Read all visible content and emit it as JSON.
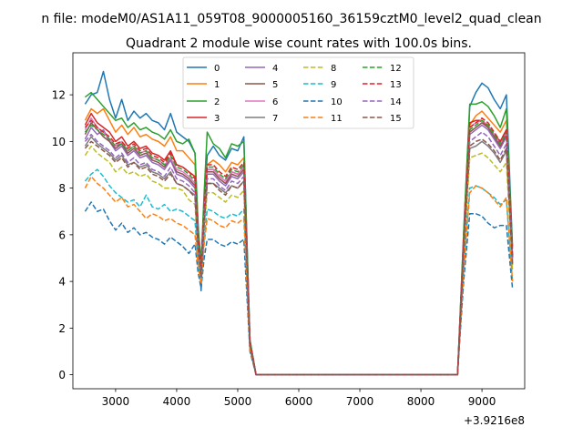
{
  "chart_data": {
    "type": "line",
    "suptitle": "n file: modeM0/AS1A11_059T08_9000005160_36159cztM0_level2_quad_clean",
    "title": "Quadrant 2 module wise count rates with 100.0s bins.",
    "xlabel": "",
    "ylabel": "",
    "x_offset_label": "+3.9216e8",
    "xlim": [
      2300,
      9700
    ],
    "ylim": [
      -0.6,
      13.8
    ],
    "xticks": [
      3000,
      4000,
      5000,
      6000,
      7000,
      8000,
      9000
    ],
    "yticks": [
      0,
      2,
      4,
      6,
      8,
      10,
      12
    ],
    "grid": false,
    "legend": {
      "position": "top-center",
      "columns": 4
    },
    "x": [
      2500,
      2600,
      2700,
      2800,
      2900,
      3000,
      3100,
      3200,
      3300,
      3400,
      3500,
      3600,
      3700,
      3800,
      3900,
      4000,
      4100,
      4200,
      4300,
      4350,
      4400,
      4450,
      4500,
      4600,
      4700,
      4800,
      4900,
      5000,
      5100,
      5200,
      5300,
      5400,
      5500,
      6000,
      7000,
      8000,
      8500,
      8600,
      8700,
      8800,
      8900,
      9000,
      9100,
      9200,
      9300,
      9400,
      9500
    ],
    "series": [
      {
        "name": "0",
        "style": "solid",
        "color": "#1f77b4",
        "values": [
          11.6,
          12.0,
          12.1,
          13.0,
          11.8,
          11.0,
          11.8,
          10.9,
          11.3,
          11.0,
          11.2,
          10.9,
          10.8,
          10.5,
          11.2,
          10.4,
          10.2,
          10.0,
          9.5,
          6.5,
          3.6,
          7.5,
          9.4,
          9.8,
          9.4,
          9.2,
          9.7,
          9.6,
          10.2,
          1.5,
          0,
          0,
          0,
          0,
          0,
          0,
          0,
          0,
          6.0,
          11.5,
          12.1,
          12.5,
          12.3,
          11.8,
          11.4,
          12.0,
          5.5
        ]
      },
      {
        "name": "1",
        "style": "solid",
        "color": "#ff7f0e",
        "values": [
          10.9,
          11.4,
          11.2,
          11.4,
          10.9,
          10.4,
          10.7,
          10.3,
          10.6,
          10.2,
          10.3,
          10.1,
          10.0,
          9.8,
          10.2,
          9.6,
          9.6,
          9.3,
          9.0,
          6.0,
          4.2,
          7.0,
          9.0,
          9.2,
          9.0,
          8.7,
          9.1,
          9.0,
          9.3,
          1.4,
          0,
          0,
          0,
          0,
          0,
          0,
          0,
          0,
          5.6,
          10.7,
          11.1,
          11.3,
          11.0,
          10.7,
          10.4,
          10.9,
          5.0
        ]
      },
      {
        "name": "2",
        "style": "solid",
        "color": "#2ca02c",
        "values": [
          11.9,
          12.1,
          11.8,
          11.5,
          11.2,
          10.9,
          11.0,
          10.6,
          10.8,
          10.5,
          10.6,
          10.4,
          10.3,
          10.1,
          10.5,
          10.0,
          9.9,
          10.1,
          9.5,
          6.4,
          4.8,
          7.8,
          10.4,
          9.9,
          9.7,
          9.3,
          9.9,
          9.8,
          10.0,
          1.5,
          0,
          0,
          0,
          0,
          0,
          0,
          0,
          0,
          6.1,
          11.6,
          11.6,
          11.7,
          11.5,
          11.1,
          10.6,
          11.4,
          5.4
        ]
      },
      {
        "name": "3",
        "style": "solid",
        "color": "#d62728",
        "values": [
          10.7,
          11.2,
          10.8,
          10.6,
          10.4,
          10.0,
          10.2,
          9.8,
          10.0,
          9.7,
          9.8,
          9.5,
          9.4,
          9.2,
          9.6,
          9.0,
          8.9,
          8.7,
          8.5,
          5.9,
          4.4,
          7.0,
          8.8,
          8.8,
          8.5,
          8.3,
          8.7,
          8.6,
          8.9,
          1.4,
          0,
          0,
          0,
          0,
          0,
          0,
          0,
          0,
          5.7,
          10.8,
          10.9,
          10.9,
          10.6,
          10.3,
          10.0,
          10.5,
          5.1
        ]
      },
      {
        "name": "4",
        "style": "solid",
        "color": "#9467bd",
        "values": [
          10.1,
          10.6,
          10.3,
          10.5,
          10.0,
          9.6,
          9.8,
          9.4,
          9.6,
          9.3,
          9.4,
          9.1,
          9.0,
          8.8,
          9.2,
          8.6,
          8.5,
          8.3,
          8.0,
          5.6,
          4.3,
          6.8,
          8.6,
          8.6,
          8.3,
          8.1,
          8.5,
          8.4,
          8.7,
          1.3,
          0,
          0,
          0,
          0,
          0,
          0,
          0,
          0,
          5.4,
          10.3,
          10.5,
          10.7,
          10.5,
          10.1,
          9.7,
          10.2,
          4.9
        ]
      },
      {
        "name": "5",
        "style": "solid",
        "color": "#8c564b",
        "values": [
          10.3,
          10.8,
          10.5,
          10.2,
          10.0,
          9.7,
          9.9,
          9.5,
          9.7,
          9.4,
          9.5,
          9.2,
          9.1,
          8.9,
          9.3,
          8.7,
          8.6,
          8.4,
          8.1,
          5.7,
          4.4,
          6.9,
          8.7,
          8.7,
          8.4,
          8.2,
          8.6,
          8.5,
          8.8,
          1.4,
          0,
          0,
          0,
          0,
          0,
          0,
          0,
          0,
          5.5,
          10.4,
          10.6,
          10.8,
          10.6,
          10.2,
          9.8,
          10.3,
          5.0
        ]
      },
      {
        "name": "6",
        "style": "solid",
        "color": "#e377c2",
        "values": [
          10.5,
          11.0,
          10.6,
          10.4,
          10.1,
          9.8,
          10.0,
          9.6,
          9.8,
          9.5,
          9.6,
          9.3,
          9.2,
          9.0,
          9.3,
          8.8,
          8.7,
          8.5,
          8.2,
          5.8,
          4.5,
          7.0,
          8.8,
          8.8,
          8.5,
          8.3,
          8.7,
          8.6,
          8.9,
          1.4,
          0,
          0,
          0,
          0,
          0,
          0,
          0,
          0,
          5.6,
          10.6,
          10.8,
          10.9,
          10.7,
          10.3,
          9.9,
          10.4,
          5.0
        ]
      },
      {
        "name": "7",
        "style": "solid",
        "color": "#7f7f7f",
        "values": [
          9.8,
          10.2,
          9.9,
          9.7,
          9.5,
          9.2,
          9.4,
          9.0,
          9.1,
          8.9,
          9.0,
          8.7,
          8.6,
          8.4,
          8.7,
          8.2,
          8.1,
          7.9,
          7.7,
          5.4,
          4.2,
          6.5,
          8.2,
          8.2,
          8.0,
          7.8,
          8.1,
          8.0,
          8.3,
          1.3,
          0,
          0,
          0,
          0,
          0,
          0,
          0,
          0,
          5.2,
          9.7,
          9.8,
          10.0,
          9.8,
          9.5,
          9.1,
          9.6,
          4.7
        ]
      },
      {
        "name": "8",
        "style": "dashed",
        "color": "#bcbd22",
        "values": [
          9.4,
          9.8,
          9.5,
          9.3,
          9.1,
          8.7,
          8.9,
          8.6,
          8.7,
          8.5,
          8.6,
          8.3,
          8.2,
          8.0,
          8.0,
          8.0,
          7.9,
          7.5,
          7.3,
          5.2,
          4.0,
          6.2,
          7.8,
          7.8,
          7.6,
          7.4,
          7.7,
          7.6,
          7.9,
          1.2,
          0,
          0,
          0,
          0,
          0,
          0,
          0,
          0,
          5.0,
          9.3,
          9.4,
          9.5,
          9.3,
          9.0,
          8.7,
          9.1,
          4.5
        ]
      },
      {
        "name": "9",
        "style": "dashed",
        "color": "#17becf",
        "values": [
          8.3,
          8.6,
          8.8,
          8.5,
          8.1,
          7.8,
          7.6,
          7.4,
          7.5,
          7.2,
          7.7,
          7.2,
          7.1,
          7.3,
          7.0,
          7.1,
          7.0,
          6.8,
          6.6,
          4.8,
          3.9,
          5.8,
          7.1,
          7.0,
          6.8,
          6.7,
          6.9,
          6.8,
          7.1,
          1.1,
          0,
          0,
          0,
          0,
          0,
          0,
          0,
          0,
          4.6,
          8.0,
          8.1,
          8.0,
          7.8,
          7.6,
          7.3,
          7.5,
          4.0
        ]
      },
      {
        "name": "10",
        "style": "dashed",
        "color": "#1f77b4",
        "values": [
          7.0,
          7.4,
          7.0,
          7.1,
          6.6,
          6.2,
          6.5,
          6.1,
          6.3,
          6.0,
          6.1,
          5.9,
          5.8,
          5.6,
          5.9,
          5.7,
          5.5,
          5.2,
          5.6,
          4.4,
          3.7,
          5.0,
          5.8,
          5.8,
          5.6,
          5.5,
          5.7,
          5.6,
          5.8,
          1.0,
          0,
          0,
          0,
          0,
          0,
          0,
          0,
          0,
          4.0,
          6.9,
          6.9,
          6.8,
          6.5,
          6.3,
          6.4,
          6.4,
          3.7
        ]
      },
      {
        "name": "11",
        "style": "dashed",
        "color": "#ff7f0e",
        "values": [
          8.0,
          8.5,
          8.2,
          8.0,
          7.7,
          7.4,
          7.6,
          7.2,
          7.3,
          7.0,
          6.7,
          6.9,
          6.8,
          6.6,
          6.7,
          6.5,
          6.4,
          6.2,
          6.0,
          4.7,
          3.9,
          5.6,
          6.7,
          6.6,
          6.4,
          6.3,
          6.6,
          6.5,
          6.7,
          1.1,
          0,
          0,
          0,
          0,
          0,
          0,
          0,
          0,
          4.4,
          7.8,
          8.1,
          8.0,
          7.8,
          7.5,
          7.2,
          7.6,
          4.0
        ]
      },
      {
        "name": "12",
        "style": "dashed",
        "color": "#2ca02c",
        "values": [
          10.4,
          10.7,
          10.5,
          10.3,
          10.1,
          9.8,
          9.9,
          9.6,
          9.8,
          9.5,
          9.6,
          9.3,
          9.2,
          9.0,
          9.4,
          8.9,
          8.8,
          8.6,
          8.3,
          5.9,
          4.5,
          7.0,
          8.9,
          8.9,
          8.6,
          8.4,
          8.8,
          8.7,
          9.0,
          1.4,
          0,
          0,
          0,
          0,
          0,
          0,
          0,
          0,
          5.6,
          10.5,
          10.7,
          10.9,
          10.7,
          10.3,
          9.9,
          10.4,
          5.0
        ]
      },
      {
        "name": "13",
        "style": "dashed",
        "color": "#d62728",
        "values": [
          10.6,
          10.9,
          10.6,
          10.4,
          10.2,
          9.9,
          10.0,
          9.7,
          9.9,
          9.6,
          9.7,
          9.4,
          9.3,
          9.1,
          9.5,
          9.0,
          8.9,
          8.7,
          8.4,
          6.0,
          4.6,
          7.1,
          9.0,
          9.0,
          8.7,
          8.5,
          8.9,
          8.8,
          9.1,
          1.4,
          0,
          0,
          0,
          0,
          0,
          0,
          0,
          0,
          5.7,
          10.6,
          10.8,
          11.0,
          10.8,
          10.4,
          10.0,
          10.5,
          5.1
        ]
      },
      {
        "name": "14",
        "style": "dashed",
        "color": "#9467bd",
        "values": [
          10.0,
          10.3,
          10.0,
          9.8,
          9.6,
          9.3,
          9.5,
          9.1,
          9.3,
          9.0,
          9.1,
          8.8,
          8.7,
          8.5,
          8.9,
          8.4,
          8.3,
          8.1,
          7.8,
          5.5,
          4.3,
          6.6,
          8.4,
          8.4,
          8.1,
          7.9,
          8.3,
          8.2,
          8.5,
          1.3,
          0,
          0,
          0,
          0,
          0,
          0,
          0,
          0,
          5.3,
          10.0,
          10.2,
          10.4,
          10.2,
          9.8,
          9.4,
          9.9,
          4.8
        ]
      },
      {
        "name": "15",
        "style": "dashed",
        "color": "#8c564b",
        "values": [
          9.7,
          10.0,
          9.8,
          9.6,
          9.4,
          9.1,
          9.3,
          8.9,
          9.1,
          8.8,
          8.9,
          8.6,
          8.5,
          8.3,
          8.6,
          8.2,
          8.1,
          7.9,
          7.6,
          5.4,
          4.2,
          6.5,
          8.2,
          8.2,
          7.9,
          7.7,
          8.1,
          8.0,
          8.3,
          1.3,
          0,
          0,
          0,
          0,
          0,
          0,
          0,
          0,
          5.2,
          9.8,
          10.0,
          10.1,
          9.9,
          9.6,
          9.2,
          9.7,
          4.7
        ]
      }
    ]
  }
}
